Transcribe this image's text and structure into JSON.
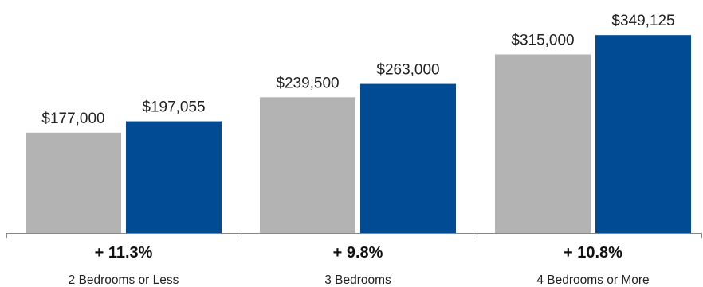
{
  "colors": {
    "prior": "#b3b3b3",
    "current": "#004b93",
    "axis": "#888888"
  },
  "chart_data": {
    "type": "bar",
    "categories": [
      "2 Bedrooms or Less",
      "3 Bedrooms",
      "4 Bedrooms or More"
    ],
    "series": [
      {
        "values": [
          177000,
          239500,
          315000
        ],
        "labels": [
          "$177,000",
          "$239,500",
          "$315,000"
        ]
      },
      {
        "values": [
          197055,
          263000,
          349125
        ],
        "labels": [
          "$197,055",
          "$263,000",
          "$349,125"
        ]
      }
    ],
    "changes": [
      "+ 11.3%",
      "+ 9.8%",
      "+ 10.8%"
    ],
    "ylim": [
      0,
      355000
    ],
    "grid": false,
    "legend": "none"
  }
}
